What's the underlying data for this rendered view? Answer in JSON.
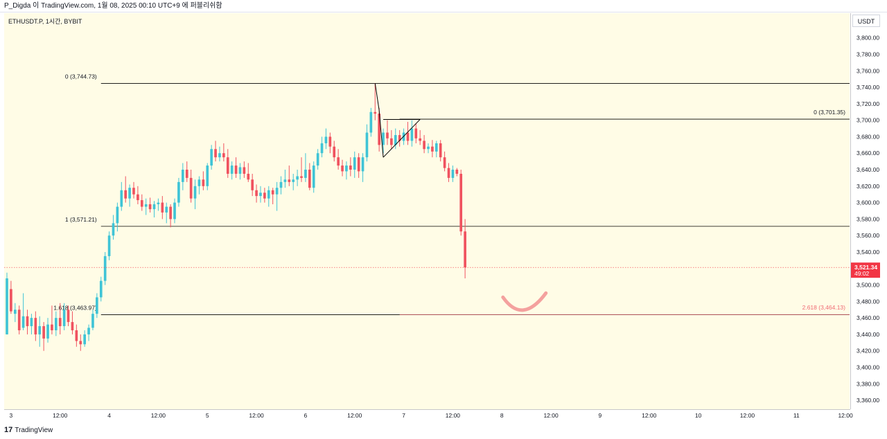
{
  "header": {
    "text": "P_Digda 이 TradingView.com, 1월 08, 2025 00:10 UTC+9 에 퍼블리쉬함"
  },
  "symbol": "ETHUSDT.P, 1시간, BYBIT",
  "currency": "USDT",
  "footer": {
    "brand": "TradingView",
    "logo": "17"
  },
  "colors": {
    "up": "#26a69a",
    "down": "#ef5350",
    "up_bright": "#3fc4d6",
    "down_bright": "#f0525f",
    "background": "#fffce6",
    "price_badge": "#f23645",
    "fib_line": "#000000",
    "fib_ext": "#f06a74",
    "smile": "#f4a19e"
  },
  "chart_data": {
    "type": "candlestick",
    "title": "ETHUSDT.P, 1시간, BYBIT",
    "ylim": [
      3350,
      3830
    ],
    "y_ticks": [
      3360,
      3380,
      3400,
      3420,
      3440,
      3460,
      3480,
      3500,
      3520,
      3540,
      3560,
      3580,
      3600,
      3620,
      3640,
      3660,
      3680,
      3700,
      3720,
      3740,
      3760,
      3780,
      3800
    ],
    "y_tick_labels": [
      "3,360.00",
      "3,380.00",
      "3,400.00",
      "3,420.00",
      "3,440.00",
      "3,460.00",
      "3,480.00",
      "3,500.00",
      "3,520.00",
      "3,540.00",
      "3,560.00",
      "3,580.00",
      "3,600.00",
      "3,620.00",
      "3,640.00",
      "3,660.00",
      "3,680.00",
      "3,700.00",
      "3,720.00",
      "3,740.00",
      "3,760.00",
      "3,780.00",
      "3,800.00"
    ],
    "x_ticks": [
      {
        "label": "3",
        "t": 0
      },
      {
        "label": "12:00",
        "t": 12
      },
      {
        "label": "4",
        "t": 24
      },
      {
        "label": "12:00",
        "t": 36
      },
      {
        "label": "5",
        "t": 48
      },
      {
        "label": "12:00",
        "t": 60
      },
      {
        "label": "6",
        "t": 72
      },
      {
        "label": "12:00",
        "t": 84
      },
      {
        "label": "7",
        "t": 96
      },
      {
        "label": "12:00",
        "t": 108
      },
      {
        "label": "8",
        "t": 120
      },
      {
        "label": "12:00",
        "t": 132
      },
      {
        "label": "9",
        "t": 144
      },
      {
        "label": "12:00",
        "t": 156
      },
      {
        "label": "10",
        "t": 168
      },
      {
        "label": "12:00",
        "t": 180
      },
      {
        "label": "11",
        "t": 192
      },
      {
        "label": "12:00",
        "t": 204
      }
    ],
    "x_range": [
      -1,
      205
    ],
    "candles": [
      {
        "t": -1,
        "o": 3440,
        "h": 3515,
        "l": 3440,
        "c": 3508
      },
      {
        "t": 0,
        "o": 3495,
        "h": 3505,
        "l": 3465,
        "c": 3468
      },
      {
        "t": 1,
        "o": 3465,
        "h": 3478,
        "l": 3455,
        "c": 3470
      },
      {
        "t": 2,
        "o": 3470,
        "h": 3475,
        "l": 3440,
        "c": 3445
      },
      {
        "t": 3,
        "o": 3448,
        "h": 3490,
        "l": 3445,
        "c": 3462
      },
      {
        "t": 4,
        "o": 3462,
        "h": 3470,
        "l": 3440,
        "c": 3450
      },
      {
        "t": 5,
        "o": 3450,
        "h": 3465,
        "l": 3440,
        "c": 3460
      },
      {
        "t": 6,
        "o": 3460,
        "h": 3468,
        "l": 3432,
        "c": 3440
      },
      {
        "t": 7,
        "o": 3440,
        "h": 3462,
        "l": 3425,
        "c": 3450
      },
      {
        "t": 8,
        "o": 3450,
        "h": 3455,
        "l": 3420,
        "c": 3435
      },
      {
        "t": 9,
        "o": 3435,
        "h": 3460,
        "l": 3430,
        "c": 3452
      },
      {
        "t": 10,
        "o": 3452,
        "h": 3475,
        "l": 3440,
        "c": 3445
      },
      {
        "t": 11,
        "o": 3445,
        "h": 3468,
        "l": 3438,
        "c": 3460
      },
      {
        "t": 12,
        "o": 3460,
        "h": 3478,
        "l": 3440,
        "c": 3450
      },
      {
        "t": 13,
        "o": 3450,
        "h": 3478,
        "l": 3445,
        "c": 3470
      },
      {
        "t": 14,
        "o": 3470,
        "h": 3475,
        "l": 3450,
        "c": 3455
      },
      {
        "t": 15,
        "o": 3455,
        "h": 3468,
        "l": 3440,
        "c": 3445
      },
      {
        "t": 16,
        "o": 3445,
        "h": 3452,
        "l": 3425,
        "c": 3432
      },
      {
        "t": 17,
        "o": 3432,
        "h": 3440,
        "l": 3420,
        "c": 3428
      },
      {
        "t": 18,
        "o": 3428,
        "h": 3445,
        "l": 3425,
        "c": 3440
      },
      {
        "t": 19,
        "o": 3440,
        "h": 3452,
        "l": 3432,
        "c": 3448
      },
      {
        "t": 20,
        "o": 3448,
        "h": 3470,
        "l": 3445,
        "c": 3465
      },
      {
        "t": 21,
        "o": 3465,
        "h": 3490,
        "l": 3460,
        "c": 3485
      },
      {
        "t": 22,
        "o": 3485,
        "h": 3510,
        "l": 3480,
        "c": 3505
      },
      {
        "t": 23,
        "o": 3505,
        "h": 3540,
        "l": 3500,
        "c": 3535
      },
      {
        "t": 24,
        "o": 3535,
        "h": 3565,
        "l": 3530,
        "c": 3560
      },
      {
        "t": 25,
        "o": 3560,
        "h": 3585,
        "l": 3555,
        "c": 3575
      },
      {
        "t": 26,
        "o": 3575,
        "h": 3600,
        "l": 3565,
        "c": 3595
      },
      {
        "t": 27,
        "o": 3595,
        "h": 3625,
        "l": 3590,
        "c": 3615
      },
      {
        "t": 28,
        "o": 3615,
        "h": 3632,
        "l": 3600,
        "c": 3605
      },
      {
        "t": 29,
        "o": 3605,
        "h": 3622,
        "l": 3595,
        "c": 3618
      },
      {
        "t": 30,
        "o": 3618,
        "h": 3625,
        "l": 3605,
        "c": 3610
      },
      {
        "t": 31,
        "o": 3610,
        "h": 3620,
        "l": 3598,
        "c": 3603
      },
      {
        "t": 32,
        "o": 3603,
        "h": 3610,
        "l": 3590,
        "c": 3595
      },
      {
        "t": 33,
        "o": 3595,
        "h": 3605,
        "l": 3585,
        "c": 3598
      },
      {
        "t": 34,
        "o": 3598,
        "h": 3606,
        "l": 3588,
        "c": 3592
      },
      {
        "t": 35,
        "o": 3592,
        "h": 3602,
        "l": 3582,
        "c": 3598
      },
      {
        "t": 36,
        "o": 3598,
        "h": 3605,
        "l": 3590,
        "c": 3600
      },
      {
        "t": 37,
        "o": 3600,
        "h": 3608,
        "l": 3580,
        "c": 3588
      },
      {
        "t": 38,
        "o": 3588,
        "h": 3600,
        "l": 3575,
        "c": 3595
      },
      {
        "t": 39,
        "o": 3595,
        "h": 3598,
        "l": 3570,
        "c": 3580
      },
      {
        "t": 40,
        "o": 3580,
        "h": 3605,
        "l": 3575,
        "c": 3600
      },
      {
        "t": 41,
        "o": 3600,
        "h": 3630,
        "l": 3595,
        "c": 3625
      },
      {
        "t": 42,
        "o": 3625,
        "h": 3648,
        "l": 3615,
        "c": 3640
      },
      {
        "t": 43,
        "o": 3640,
        "h": 3650,
        "l": 3625,
        "c": 3630
      },
      {
        "t": 44,
        "o": 3630,
        "h": 3640,
        "l": 3600,
        "c": 3605
      },
      {
        "t": 45,
        "o": 3605,
        "h": 3628,
        "l": 3592,
        "c": 3620
      },
      {
        "t": 46,
        "o": 3620,
        "h": 3632,
        "l": 3610,
        "c": 3628
      },
      {
        "t": 47,
        "o": 3628,
        "h": 3638,
        "l": 3615,
        "c": 3620
      },
      {
        "t": 48,
        "o": 3620,
        "h": 3648,
        "l": 3615,
        "c": 3645
      },
      {
        "t": 49,
        "o": 3645,
        "h": 3670,
        "l": 3640,
        "c": 3665
      },
      {
        "t": 50,
        "o": 3665,
        "h": 3675,
        "l": 3650,
        "c": 3655
      },
      {
        "t": 51,
        "o": 3655,
        "h": 3668,
        "l": 3650,
        "c": 3660
      },
      {
        "t": 52,
        "o": 3660,
        "h": 3672,
        "l": 3650,
        "c": 3655
      },
      {
        "t": 53,
        "o": 3655,
        "h": 3665,
        "l": 3630,
        "c": 3635
      },
      {
        "t": 54,
        "o": 3635,
        "h": 3650,
        "l": 3628,
        "c": 3645
      },
      {
        "t": 55,
        "o": 3645,
        "h": 3655,
        "l": 3630,
        "c": 3635
      },
      {
        "t": 56,
        "o": 3635,
        "h": 3648,
        "l": 3628,
        "c": 3643
      },
      {
        "t": 57,
        "o": 3643,
        "h": 3650,
        "l": 3630,
        "c": 3635
      },
      {
        "t": 58,
        "o": 3635,
        "h": 3648,
        "l": 3625,
        "c": 3628
      },
      {
        "t": 59,
        "o": 3628,
        "h": 3635,
        "l": 3608,
        "c": 3615
      },
      {
        "t": 60,
        "o": 3615,
        "h": 3622,
        "l": 3600,
        "c": 3608
      },
      {
        "t": 61,
        "o": 3608,
        "h": 3620,
        "l": 3600,
        "c": 3612
      },
      {
        "t": 62,
        "o": 3612,
        "h": 3618,
        "l": 3600,
        "c": 3605
      },
      {
        "t": 63,
        "o": 3605,
        "h": 3620,
        "l": 3595,
        "c": 3615
      },
      {
        "t": 64,
        "o": 3615,
        "h": 3618,
        "l": 3598,
        "c": 3610
      },
      {
        "t": 65,
        "o": 3610,
        "h": 3625,
        "l": 3590,
        "c": 3618
      },
      {
        "t": 66,
        "o": 3618,
        "h": 3632,
        "l": 3610,
        "c": 3625
      },
      {
        "t": 67,
        "o": 3625,
        "h": 3640,
        "l": 3618,
        "c": 3628
      },
      {
        "t": 68,
        "o": 3628,
        "h": 3645,
        "l": 3620,
        "c": 3625
      },
      {
        "t": 69,
        "o": 3625,
        "h": 3635,
        "l": 3615,
        "c": 3628
      },
      {
        "t": 70,
        "o": 3628,
        "h": 3640,
        "l": 3620,
        "c": 3632
      },
      {
        "t": 71,
        "o": 3632,
        "h": 3655,
        "l": 3625,
        "c": 3630
      },
      {
        "t": 72,
        "o": 3630,
        "h": 3660,
        "l": 3625,
        "c": 3640
      },
      {
        "t": 73,
        "o": 3640,
        "h": 3648,
        "l": 3615,
        "c": 3618
      },
      {
        "t": 74,
        "o": 3618,
        "h": 3650,
        "l": 3612,
        "c": 3645
      },
      {
        "t": 75,
        "o": 3645,
        "h": 3665,
        "l": 3640,
        "c": 3660
      },
      {
        "t": 76,
        "o": 3660,
        "h": 3680,
        "l": 3655,
        "c": 3672
      },
      {
        "t": 77,
        "o": 3672,
        "h": 3690,
        "l": 3665,
        "c": 3680
      },
      {
        "t": 78,
        "o": 3680,
        "h": 3685,
        "l": 3660,
        "c": 3668
      },
      {
        "t": 79,
        "o": 3668,
        "h": 3675,
        "l": 3650,
        "c": 3655
      },
      {
        "t": 80,
        "o": 3655,
        "h": 3665,
        "l": 3640,
        "c": 3645
      },
      {
        "t": 81,
        "o": 3645,
        "h": 3652,
        "l": 3632,
        "c": 3638
      },
      {
        "t": 82,
        "o": 3638,
        "h": 3650,
        "l": 3628,
        "c": 3645
      },
      {
        "t": 83,
        "o": 3645,
        "h": 3655,
        "l": 3632,
        "c": 3640
      },
      {
        "t": 84,
        "o": 3640,
        "h": 3662,
        "l": 3630,
        "c": 3655
      },
      {
        "t": 85,
        "o": 3655,
        "h": 3660,
        "l": 3630,
        "c": 3638
      },
      {
        "t": 86,
        "o": 3638,
        "h": 3660,
        "l": 3625,
        "c": 3655
      },
      {
        "t": 87,
        "o": 3655,
        "h": 3695,
        "l": 3650,
        "c": 3685
      },
      {
        "t": 88,
        "o": 3685,
        "h": 3715,
        "l": 3680,
        "c": 3710
      },
      {
        "t": 89,
        "o": 3710,
        "h": 3745,
        "l": 3700,
        "c": 3708
      },
      {
        "t": 90,
        "o": 3708,
        "h": 3715,
        "l": 3662,
        "c": 3670
      },
      {
        "t": 91,
        "o": 3670,
        "h": 3690,
        "l": 3660,
        "c": 3685
      },
      {
        "t": 92,
        "o": 3685,
        "h": 3700,
        "l": 3670,
        "c": 3678
      },
      {
        "t": 93,
        "o": 3678,
        "h": 3688,
        "l": 3665,
        "c": 3670
      },
      {
        "t": 94,
        "o": 3670,
        "h": 3690,
        "l": 3665,
        "c": 3682
      },
      {
        "t": 95,
        "o": 3682,
        "h": 3688,
        "l": 3668,
        "c": 3675
      },
      {
        "t": 96,
        "o": 3675,
        "h": 3690,
        "l": 3670,
        "c": 3685
      },
      {
        "t": 97,
        "o": 3685,
        "h": 3698,
        "l": 3670,
        "c": 3675
      },
      {
        "t": 98,
        "o": 3675,
        "h": 3700,
        "l": 3668,
        "c": 3690
      },
      {
        "t": 99,
        "o": 3690,
        "h": 3696,
        "l": 3672,
        "c": 3678
      },
      {
        "t": 100,
        "o": 3678,
        "h": 3688,
        "l": 3670,
        "c": 3675
      },
      {
        "t": 101,
        "o": 3675,
        "h": 3682,
        "l": 3660,
        "c": 3665
      },
      {
        "t": 102,
        "o": 3665,
        "h": 3672,
        "l": 3660,
        "c": 3668
      },
      {
        "t": 103,
        "o": 3668,
        "h": 3676,
        "l": 3655,
        "c": 3662
      },
      {
        "t": 104,
        "o": 3662,
        "h": 3675,
        "l": 3655,
        "c": 3672
      },
      {
        "t": 105,
        "o": 3672,
        "h": 3676,
        "l": 3650,
        "c": 3655
      },
      {
        "t": 106,
        "o": 3655,
        "h": 3662,
        "l": 3638,
        "c": 3642
      },
      {
        "t": 107,
        "o": 3642,
        "h": 3648,
        "l": 3625,
        "c": 3630
      },
      {
        "t": 108,
        "o": 3630,
        "h": 3645,
        "l": 3625,
        "c": 3640
      },
      {
        "t": 109,
        "o": 3640,
        "h": 3642,
        "l": 3632,
        "c": 3635
      },
      {
        "t": 110,
        "o": 3635,
        "h": 3640,
        "l": 3560,
        "c": 3565
      },
      {
        "t": 111,
        "o": 3565,
        "h": 3580,
        "l": 3508,
        "c": 3521.34
      }
    ],
    "fib_tool_1": {
      "levels": [
        {
          "ratio": "0",
          "price": 3744.73,
          "label": "0 (3,744.73)"
        },
        {
          "ratio": "1",
          "price": 3571.21,
          "label": "1 (3,571.21)"
        },
        {
          "ratio": "1.618",
          "price": 3463.97,
          "label": "1.618 (3,463.97)"
        }
      ],
      "t_start": 22,
      "t_end": 205
    },
    "fib_tool_2": {
      "levels": [
        {
          "ratio": "0",
          "price": 3701.35,
          "label": "0 (3,701.35)"
        },
        {
          "ratio": "2.618",
          "price": 3464.13,
          "label": "2.618 (3,464.13)"
        }
      ],
      "t_start": 95,
      "t_end": 205
    },
    "pattern_lines": [
      {
        "t1": 89,
        "p1": 3745,
        "t2": 90,
        "p2": 3712
      },
      {
        "t1": 90,
        "p1": 3712,
        "t2": 91,
        "p2": 3655
      },
      {
        "t1": 91,
        "p1": 3655,
        "t2": 100,
        "p2": 3701
      },
      {
        "t1": 91,
        "p1": 3701,
        "t2": 100,
        "p2": 3701
      }
    ],
    "smile_annotation": {
      "t_center": 125,
      "price_center": 3470
    },
    "last_price": {
      "value": 3521.34,
      "label": "3,521.34",
      "countdown": "49:02"
    }
  }
}
